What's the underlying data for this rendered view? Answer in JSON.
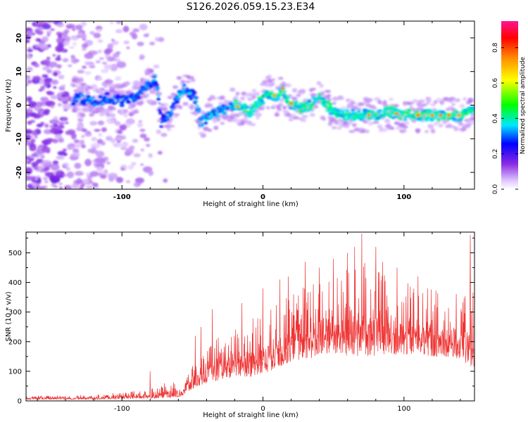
{
  "title": "S126.2026.059.15.23.E34",
  "chart_data": [
    {
      "type": "heatmap",
      "xlabel": "Height of straight line (km)",
      "ylabel": "Frequency (Hz)",
      "xlim": [
        -168,
        150
      ],
      "ylim": [
        -25,
        25
      ],
      "xticks": [
        "-100",
        "0",
        "100"
      ],
      "xtick_values": [
        -100,
        0,
        100
      ],
      "yticks": [
        "20",
        "10",
        "0",
        "-10",
        "-20"
      ],
      "ytick_values": [
        20,
        10,
        0,
        -10,
        -20
      ],
      "ridge": {
        "x": [
          -168,
          -155,
          -140,
          -128,
          -120,
          -110,
          -100,
          -90,
          -80,
          -76,
          -72,
          -66,
          -60,
          -55,
          -48,
          -44,
          -40,
          -35,
          -30,
          -25,
          -20,
          -15,
          -10,
          -5,
          0,
          5,
          10,
          14,
          18,
          22,
          30,
          40,
          50,
          60,
          70,
          80,
          90,
          100,
          110,
          120,
          130,
          140,
          150
        ],
        "y": [
          3,
          2,
          1,
          2,
          1,
          2,
          1,
          3,
          6,
          8,
          -5,
          -3,
          3,
          5,
          2,
          -5,
          -4,
          -2,
          -2,
          -1,
          0,
          -1,
          -2,
          0,
          2,
          4,
          2,
          5,
          1,
          0,
          -1,
          2,
          -2,
          -3,
          -3,
          -3,
          -2,
          -3,
          -3,
          -3,
          -3,
          -3,
          -1
        ]
      },
      "hotspots_x": [
        -18,
        8,
        14,
        20,
        75,
        95,
        110,
        120,
        126,
        132,
        139
      ],
      "colorbar": {
        "label": "Normalized spectral amplitude",
        "range": [
          0,
          0.95
        ],
        "ticks": [
          "0.0",
          "0.2",
          "0.4",
          "0.6",
          "0.8"
        ],
        "tick_values": [
          0,
          0.2,
          0.4,
          0.6,
          0.8
        ],
        "colors": [
          "#ffffff",
          "#e0c8ff",
          "#8a2be2",
          "#0000ff",
          "#00e6ff",
          "#00ff00",
          "#ffff00",
          "#ff8c00",
          "#ff0000",
          "#ff1493"
        ]
      }
    },
    {
      "type": "line",
      "xlabel": "Height of straight line (km)",
      "ylabel": "SNR (10 * v/v)",
      "xlim": [
        -168,
        150
      ],
      "ylim": [
        0,
        570
      ],
      "xticks": [
        "-100",
        "0",
        "100"
      ],
      "xtick_values": [
        -100,
        0,
        100
      ],
      "yticks": [
        "0",
        "100",
        "200",
        "300",
        "400",
        "500"
      ],
      "ytick_values": [
        0,
        100,
        200,
        300,
        400,
        500
      ],
      "series": [
        {
          "name": "SNR",
          "color": "#ee3333",
          "envelope_x": [
            -168,
            -120,
            -80,
            -70,
            -60,
            -55,
            -50,
            -45,
            -40,
            -30,
            -20,
            -10,
            0,
            10,
            20,
            30,
            40,
            50,
            60,
            70,
            80,
            90,
            100,
            110,
            120,
            130,
            140,
            145,
            150
          ],
          "envelope_lo": [
            5,
            5,
            8,
            10,
            12,
            20,
            40,
            50,
            60,
            70,
            80,
            80,
            90,
            110,
            130,
            140,
            150,
            160,
            150,
            150,
            150,
            160,
            150,
            160,
            150,
            150,
            140,
            120,
            110
          ],
          "envelope_hi": [
            18,
            20,
            40,
            60,
            70,
            90,
            140,
            160,
            170,
            230,
            250,
            270,
            300,
            330,
            360,
            400,
            420,
            420,
            450,
            470,
            460,
            420,
            400,
            390,
            380,
            370,
            360,
            400,
            420
          ],
          "peaks_x": [
            -80,
            -48,
            -44,
            -36,
            -15,
            0,
            12,
            18,
            30,
            40,
            50,
            60,
            65,
            70,
            80,
            85,
            95,
            110,
            147
          ],
          "peaks_y": [
            100,
            220,
            250,
            310,
            330,
            380,
            410,
            420,
            470,
            450,
            480,
            500,
            520,
            565,
            520,
            470,
            450,
            420,
            560
          ]
        }
      ]
    }
  ]
}
